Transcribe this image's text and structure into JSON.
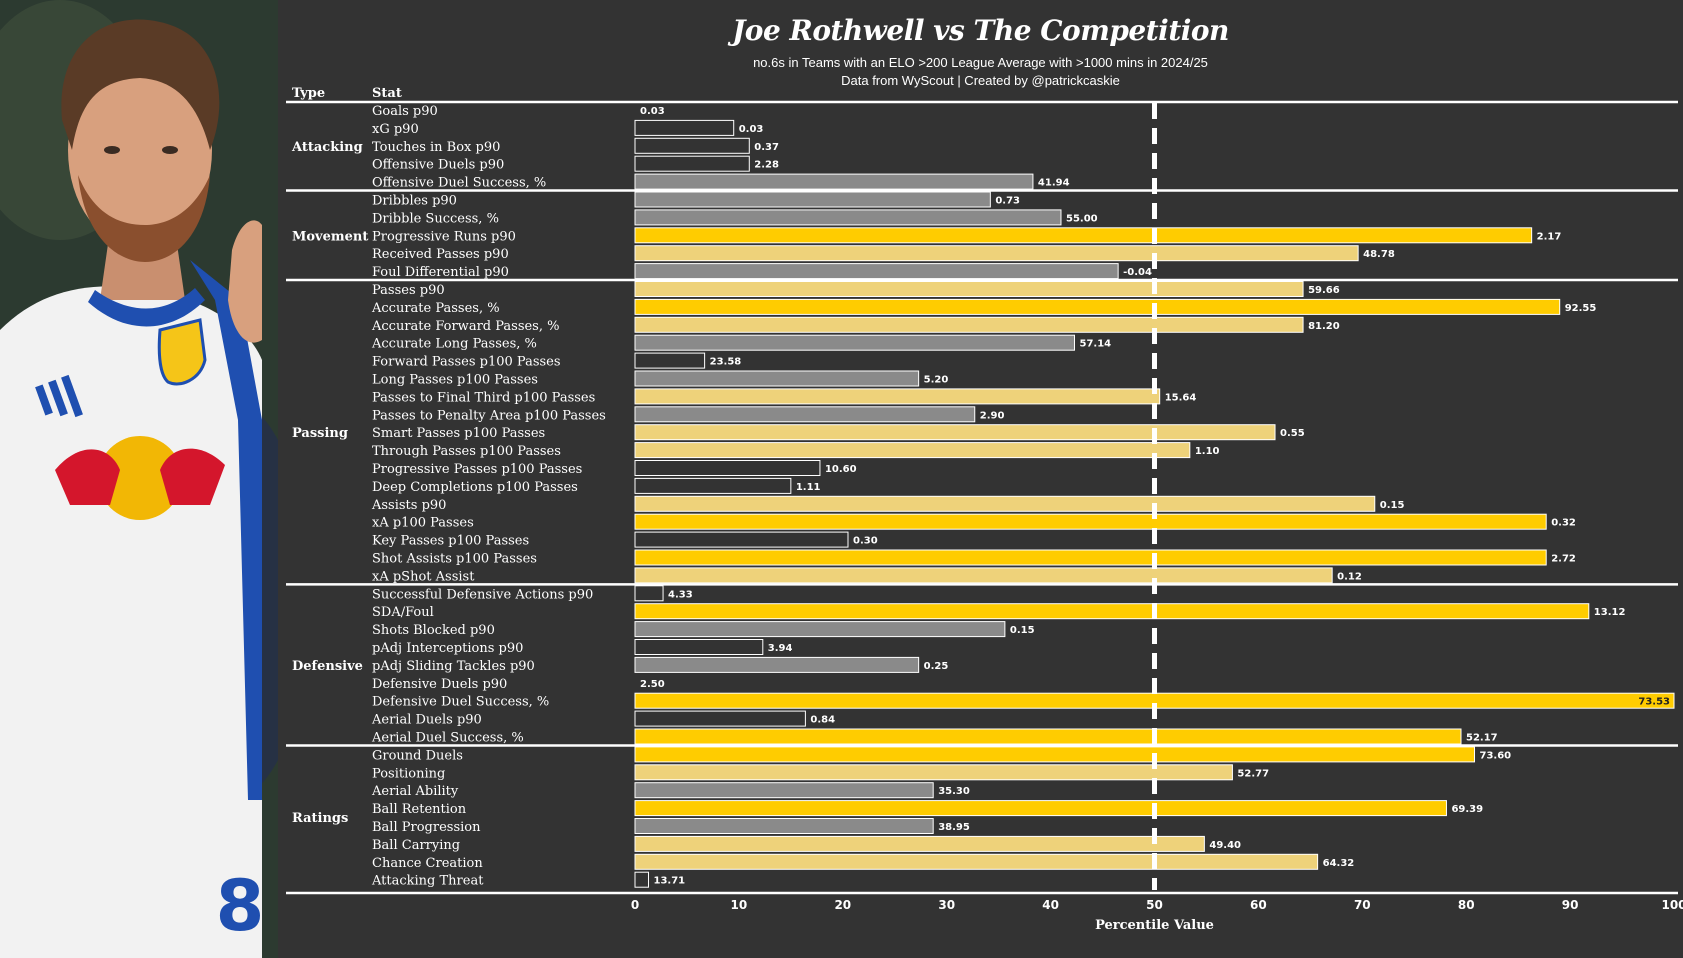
{
  "header": {
    "title": "Joe Rothwell vs The Competition",
    "subtitle": "no.6s in Teams with an ELO >200 League Average with >1000 mins in 2024/25",
    "credit": "Data from WyScout | Created by @patrickcaskie"
  },
  "photo": {
    "description_icon": "player-photo",
    "jersey_number": "8"
  },
  "colors": {
    "background": "#333333",
    "high": "#FFCC00",
    "mid": "#EED27A",
    "low": "#8A8A8A",
    "poor": "#333333",
    "text": "#ffffff",
    "median_line": "#ffffff"
  },
  "chart_data": {
    "type": "bar",
    "orientation": "horizontal",
    "column_headers": {
      "type": "Type",
      "stat": "Stat"
    },
    "xlabel": "Percentile Value",
    "xlim": [
      0,
      100
    ],
    "xticks": [
      0,
      10,
      20,
      30,
      40,
      50,
      60,
      70,
      80,
      90,
      100
    ],
    "median_line": 50,
    "groups": [
      {
        "type": "Attacking",
        "rows": [
          {
            "stat": "Goals p90",
            "percentile": 0,
            "label": "0.03",
            "tier": "poor"
          },
          {
            "stat": "xG p90",
            "percentile": 9.5,
            "label": "0.03",
            "tier": "poor"
          },
          {
            "stat": "Touches in Box p90",
            "percentile": 11,
            "label": "0.37",
            "tier": "poor"
          },
          {
            "stat": "Offensive Duels p90",
            "percentile": 11,
            "label": "2.28",
            "tier": "poor"
          },
          {
            "stat": "Offensive Duel Success, %",
            "percentile": 38.3,
            "label": "41.94",
            "tier": "low"
          }
        ]
      },
      {
        "type": "Movement",
        "rows": [
          {
            "stat": "Dribbles p90",
            "percentile": 34.2,
            "label": "0.73",
            "tier": "low"
          },
          {
            "stat": "Dribble Success, %",
            "percentile": 41,
            "label": "55.00",
            "tier": "low"
          },
          {
            "stat": "Progressive Runs p90",
            "percentile": 86.3,
            "label": "2.17",
            "tier": "high"
          },
          {
            "stat": "Received Passes p90",
            "percentile": 69.6,
            "label": "48.78",
            "tier": "mid"
          },
          {
            "stat": "Foul Differential p90",
            "percentile": 46.5,
            "label": "-0.04",
            "tier": "low"
          }
        ]
      },
      {
        "type": "Passing",
        "rows": [
          {
            "stat": "Passes p90",
            "percentile": 64.3,
            "label": "59.66",
            "tier": "mid"
          },
          {
            "stat": "Accurate Passes, %",
            "percentile": 89,
            "label": "92.55",
            "tier": "high"
          },
          {
            "stat": "Accurate Forward Passes, %",
            "percentile": 64.3,
            "label": "81.20",
            "tier": "mid"
          },
          {
            "stat": "Accurate Long Passes, %",
            "percentile": 42.3,
            "label": "57.14",
            "tier": "low"
          },
          {
            "stat": "Forward Passes p100 Passes",
            "percentile": 6.7,
            "label": "23.58",
            "tier": "poor"
          },
          {
            "stat": "Long Passes p100 Passes",
            "percentile": 27.3,
            "label": "5.20",
            "tier": "low"
          },
          {
            "stat": "Passes to Final Third p100 Passes",
            "percentile": 50.5,
            "label": "15.64",
            "tier": "mid"
          },
          {
            "stat": "Passes to Penalty Area p100 Passes",
            "percentile": 32.7,
            "label": "2.90",
            "tier": "low"
          },
          {
            "stat": "Smart Passes p100 Passes",
            "percentile": 61.6,
            "label": "0.55",
            "tier": "mid"
          },
          {
            "stat": "Through Passes p100 Passes",
            "percentile": 53.4,
            "label": "1.10",
            "tier": "mid"
          },
          {
            "stat": "Progressive Passes p100 Passes",
            "percentile": 17.8,
            "label": "10.60",
            "tier": "poor"
          },
          {
            "stat": "Deep Completions p100 Passes",
            "percentile": 15,
            "label": "1.11",
            "tier": "poor"
          },
          {
            "stat": "Assists p90",
            "percentile": 71.2,
            "label": "0.15",
            "tier": "mid"
          },
          {
            "stat": "xA p100 Passes",
            "percentile": 87.7,
            "label": "0.32",
            "tier": "high"
          },
          {
            "stat": "Key Passes p100 Passes",
            "percentile": 20.5,
            "label": "0.30",
            "tier": "poor"
          },
          {
            "stat": "Shot Assists p100 Passes",
            "percentile": 87.7,
            "label": "2.72",
            "tier": "high"
          },
          {
            "stat": "xA pShot Assist",
            "percentile": 67.1,
            "label": "0.12",
            "tier": "mid"
          }
        ]
      },
      {
        "type": "Defensive",
        "rows": [
          {
            "stat": "Successful Defensive Actions p90",
            "percentile": 2.7,
            "label": "4.33",
            "tier": "poor"
          },
          {
            "stat": "SDA/Foul",
            "percentile": 91.8,
            "label": "13.12",
            "tier": "high"
          },
          {
            "stat": "Shots Blocked p90",
            "percentile": 35.6,
            "label": "0.15",
            "tier": "low"
          },
          {
            "stat": "pAdj Interceptions p90",
            "percentile": 12.3,
            "label": "3.94",
            "tier": "poor"
          },
          {
            "stat": "pAdj Sliding Tackles p90",
            "percentile": 27.3,
            "label": "0.25",
            "tier": "low"
          },
          {
            "stat": "Defensive Duels p90",
            "percentile": 0,
            "label": "2.50",
            "tier": "poor"
          },
          {
            "stat": "Defensive Duel Success, %",
            "percentile": 100,
            "label": "73.53",
            "tier": "high"
          },
          {
            "stat": "Aerial Duels p90",
            "percentile": 16.4,
            "label": "0.84",
            "tier": "poor"
          },
          {
            "stat": "Aerial Duel Success, %",
            "percentile": 79.5,
            "label": "52.17",
            "tier": "high"
          }
        ]
      },
      {
        "type": "Ratings",
        "rows": [
          {
            "stat": "Ground Duels",
            "percentile": 80.8,
            "label": "73.60",
            "tier": "high"
          },
          {
            "stat": "Positioning",
            "percentile": 57.5,
            "label": "52.77",
            "tier": "mid"
          },
          {
            "stat": "Aerial Ability",
            "percentile": 28.7,
            "label": "35.30",
            "tier": "low"
          },
          {
            "stat": "Ball Retention",
            "percentile": 78.1,
            "label": "69.39",
            "tier": "high"
          },
          {
            "stat": "Ball Progression",
            "percentile": 28.7,
            "label": "38.95",
            "tier": "low"
          },
          {
            "stat": "Ball Carrying",
            "percentile": 54.8,
            "label": "49.40",
            "tier": "mid"
          },
          {
            "stat": "Chance Creation",
            "percentile": 65.7,
            "label": "64.32",
            "tier": "mid"
          },
          {
            "stat": "Attacking Threat",
            "percentile": 1.3,
            "label": "13.71",
            "tier": "poor"
          }
        ]
      }
    ]
  }
}
